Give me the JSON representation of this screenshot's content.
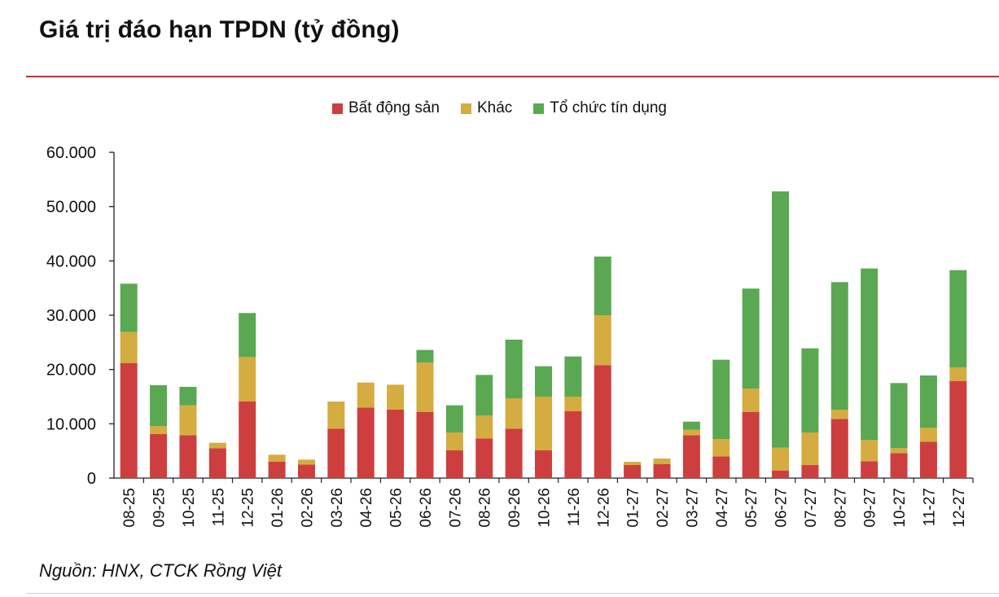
{
  "title": "Giá trị đáo hạn TPDN (tỷ đồng)",
  "source": "Nguồn: HNX, CTCK Rồng Việt",
  "colors": {
    "bat_dong_san": "#cd3f3e",
    "khac": "#d4ac40",
    "to_chuc_tin_dung": "#5aa852",
    "accent_rule": "#d62828"
  },
  "chart_data": {
    "type": "bar",
    "stacked": true,
    "categories": [
      "08-25",
      "09-25",
      "10-25",
      "11-25",
      "12-25",
      "01-26",
      "02-26",
      "03-26",
      "04-26",
      "05-26",
      "06-26",
      "07-26",
      "08-26",
      "09-26",
      "10-26",
      "11-26",
      "12-26",
      "01-27",
      "02-27",
      "03-27",
      "04-27",
      "05-27",
      "06-27",
      "07-27",
      "08-27",
      "09-27",
      "10-27",
      "11-27",
      "12-27"
    ],
    "series": [
      {
        "name": "Bất động sản",
        "values": [
          21200,
          8100,
          7900,
          5500,
          14100,
          3000,
          2500,
          9100,
          13000,
          12600,
          12200,
          5100,
          7300,
          9100,
          5100,
          12300,
          20800,
          2400,
          2600,
          7900,
          4000,
          12200,
          1400,
          2400,
          10900,
          3100,
          4600,
          6700,
          17900
        ]
      },
      {
        "name": "Khác",
        "values": [
          5700,
          1500,
          5500,
          1000,
          8200,
          1300,
          900,
          5000,
          4600,
          4600,
          9100,
          3300,
          4200,
          5600,
          9900,
          2700,
          9200,
          600,
          1000,
          1000,
          3200,
          4300,
          4200,
          6000,
          1700,
          3900,
          900,
          2600,
          2500
        ]
      },
      {
        "name": "Tổ chức tín dụng",
        "values": [
          8900,
          7500,
          3400,
          0,
          8100,
          0,
          0,
          0,
          0,
          0,
          2300,
          5000,
          7500,
          10800,
          5600,
          7400,
          10800,
          0,
          0,
          1500,
          14600,
          18400,
          47200,
          15500,
          23500,
          31600,
          12000,
          9600,
          17900
        ]
      }
    ],
    "yticks": [
      "0",
      "10.000",
      "20.000",
      "30.000",
      "40.000",
      "50.000",
      "60.000"
    ],
    "ylim": [
      0,
      60000
    ],
    "xlabel": "",
    "ylabel": "",
    "grid": false,
    "legend_position": "top-center"
  }
}
